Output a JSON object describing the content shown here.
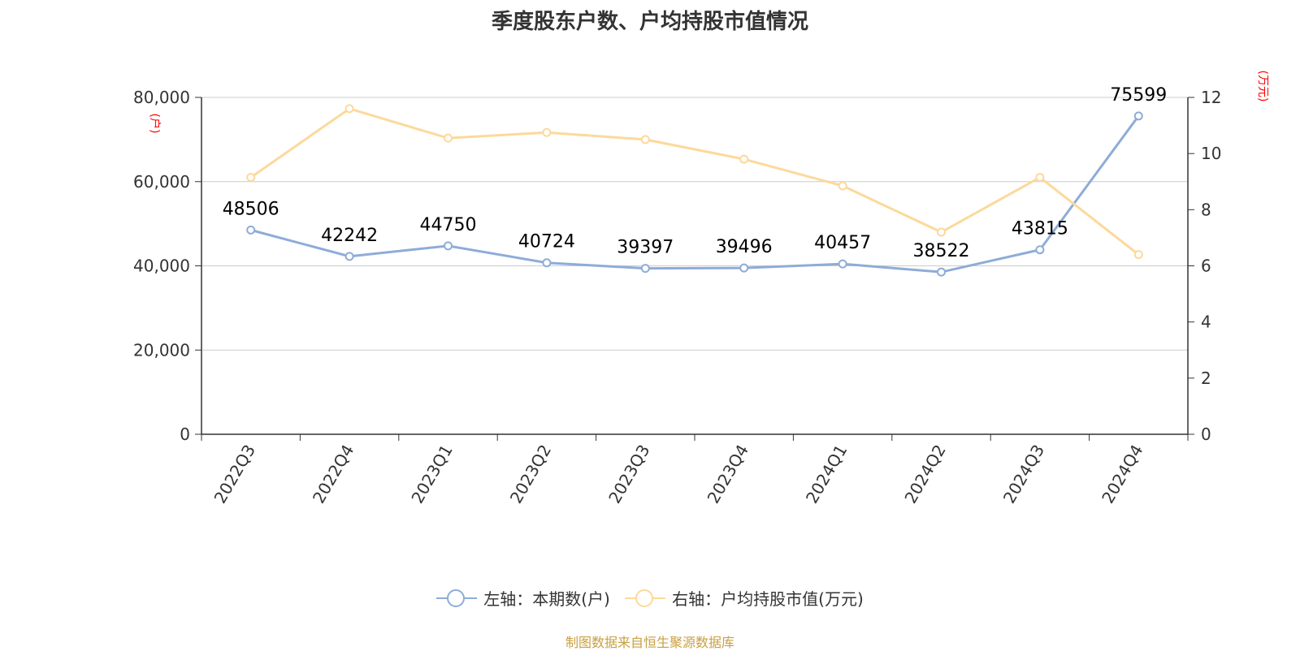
{
  "chart_data": {
    "type": "line",
    "title": "季度股东户数、户均持股市值情况",
    "categories": [
      "2022Q3",
      "2022Q4",
      "2023Q1",
      "2023Q2",
      "2023Q3",
      "2023Q4",
      "2024Q1",
      "2024Q2",
      "2024Q3",
      "2024Q4"
    ],
    "left_axis": {
      "unit": "(户)",
      "range": [
        0,
        80000
      ],
      "ticks": [
        0,
        20000,
        40000,
        60000,
        80000
      ],
      "tick_labels": [
        "0",
        "20,000",
        "40,000",
        "60,000",
        "80,000"
      ]
    },
    "right_axis": {
      "unit": "(万元)",
      "range": [
        0,
        12
      ],
      "ticks": [
        0,
        2,
        4,
        6,
        8,
        10,
        12
      ],
      "tick_labels": [
        "0",
        "2",
        "4",
        "6",
        "8",
        "10",
        "12"
      ]
    },
    "grid": true,
    "legend_position": "bottom",
    "series": [
      {
        "name": "左轴：本期数(户)",
        "axis": "left",
        "color": "#8eacd8",
        "show_labels": true,
        "values": [
          48506,
          42242,
          44750,
          40724,
          39397,
          39496,
          40457,
          38522,
          43815,
          75599
        ]
      },
      {
        "name": "右轴：户均持股市值(万元)",
        "axis": "right",
        "color": "#fcd99a",
        "show_labels": false,
        "values": [
          9.15,
          11.6,
          10.55,
          10.75,
          10.5,
          9.8,
          8.85,
          7.2,
          9.15,
          6.4
        ]
      }
    ],
    "source": "制图数据来自恒生聚源数据库"
  }
}
